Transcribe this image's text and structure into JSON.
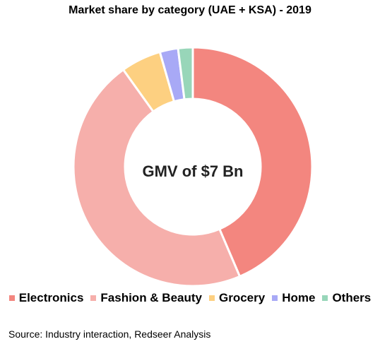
{
  "chart_data": {
    "type": "pie",
    "title": "Market share by category (UAE + KSA) - 2019",
    "center_label": "GMV of $7 Bn",
    "categories": [
      "Electronics",
      "Fashion & Beauty",
      "Grocery",
      "Home",
      "Others"
    ],
    "values": [
      44,
      47,
      5.5,
      2.5,
      2
    ],
    "colors": [
      "#F3867F",
      "#F6AFAB",
      "#FDD081",
      "#A8A9F6",
      "#98D6B9"
    ],
    "legend_position": "bottom"
  },
  "source": "Source: Industry interaction, Redseer Analysis"
}
